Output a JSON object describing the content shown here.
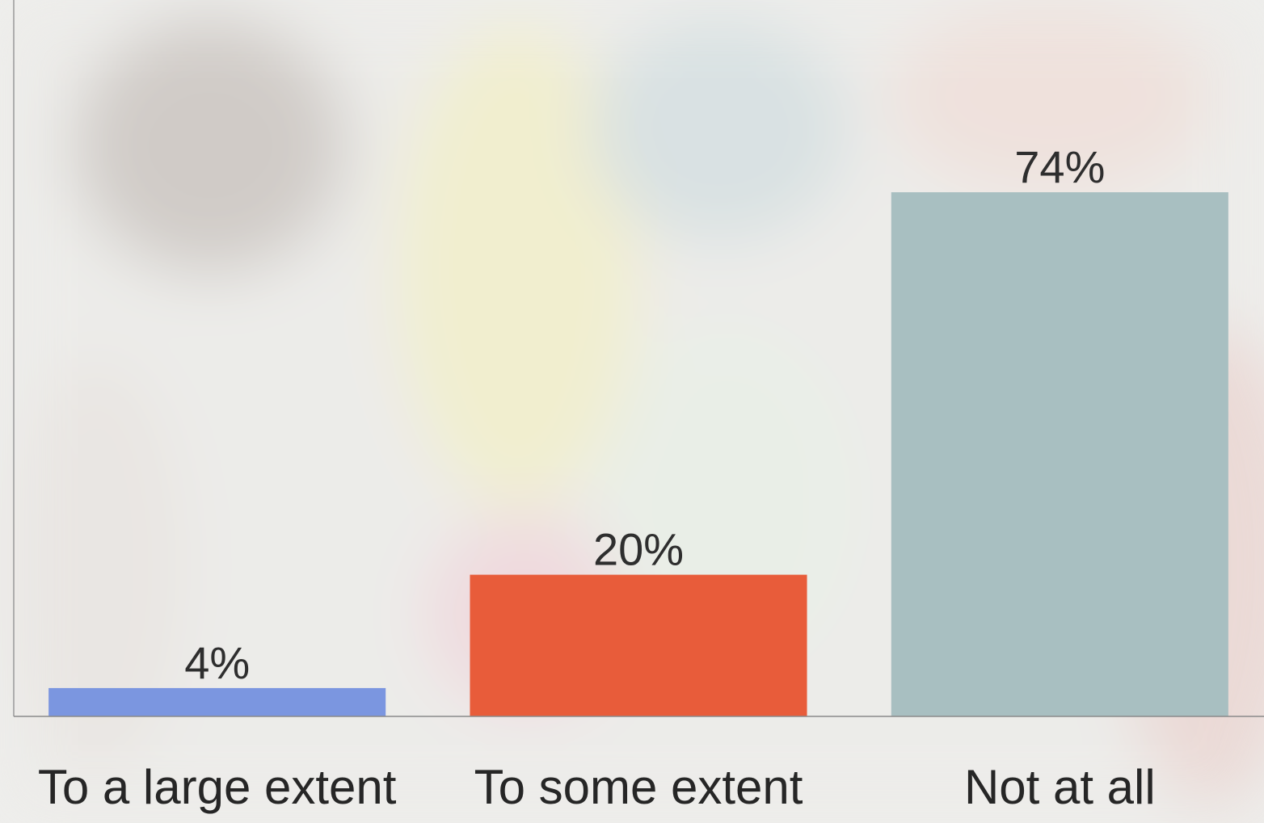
{
  "chart_data": {
    "type": "bar",
    "categories": [
      "To a large extent",
      "To some extent",
      "Not at all"
    ],
    "values": [
      4,
      20,
      74
    ],
    "value_labels": [
      "4%",
      "20%",
      "74%"
    ],
    "colors": [
      "#7b96e0",
      "#e85c3a",
      "#a8bfc1"
    ],
    "ylim": [
      0,
      100
    ]
  }
}
